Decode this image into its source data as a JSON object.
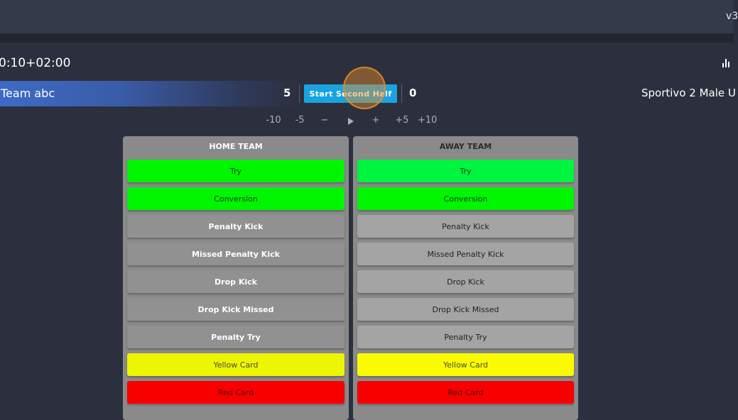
{
  "header": {
    "version": "v3"
  },
  "match": {
    "clock": "0:10+02:00",
    "home": {
      "name": "Team abc",
      "score": "5",
      "bar_color": "#3e6ac6"
    },
    "away": {
      "name": "Sportivo 2 Male U",
      "score": "0"
    },
    "start_label": "Start Second Half",
    "icons": {
      "stats": "bar-chart-icon",
      "play": "play-icon"
    }
  },
  "time_controls": {
    "minus10": "-10",
    "minus5": "-5",
    "minus": "−",
    "plus": "+",
    "plus5": "+5",
    "plus10": "+10"
  },
  "home_panel": {
    "title": "HOME TEAM",
    "events": [
      "Try",
      "Conversion",
      "Penalty Kick",
      "Missed Penalty Kick",
      "Drop Kick",
      "Drop Kick Missed",
      "Penalty Try",
      "Yellow Card",
      "Red Card"
    ]
  },
  "away_panel": {
    "title": "AWAY TEAM",
    "events": [
      "Try",
      "Conversion",
      "Penalty Kick",
      "Missed Penalty Kick",
      "Drop Kick",
      "Drop Kick Missed",
      "Penalty Try",
      "Yellow Card",
      "Red Card"
    ]
  },
  "colors": {
    "accent": "#1aa3e0",
    "score_green": "#00f500",
    "yellow_card": "#fbfb00",
    "red_card": "#f80000"
  }
}
